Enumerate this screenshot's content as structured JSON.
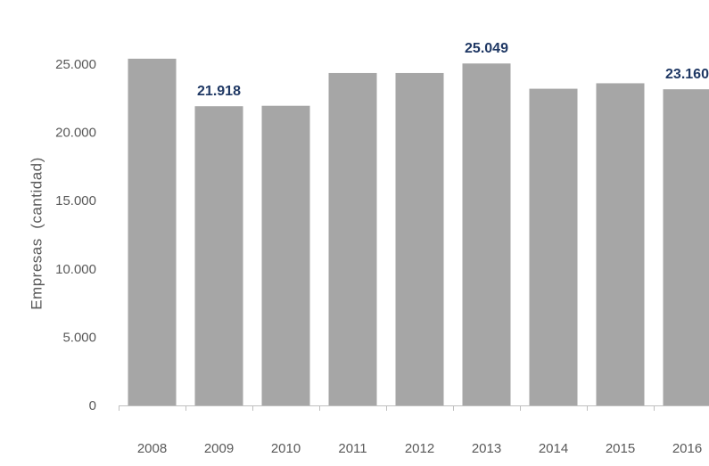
{
  "chart_data": {
    "type": "bar",
    "categories": [
      "2008",
      "2009",
      "2010",
      "2011",
      "2012",
      "2013",
      "2014",
      "2015",
      "2016"
    ],
    "values": [
      25400,
      21918,
      21950,
      24350,
      24350,
      25049,
      23200,
      23600,
      23160
    ],
    "data_labels": [
      {
        "category": "2009",
        "text": "21.918"
      },
      {
        "category": "2013",
        "text": "25.049"
      },
      {
        "category": "2016",
        "text": "23.160"
      }
    ],
    "yticks": [
      0,
      5000,
      10000,
      15000,
      20000,
      25000
    ],
    "ytick_labels": [
      "0",
      "5.000",
      "10.000",
      "15.000",
      "20.000",
      "25.000"
    ],
    "ylim": [
      0,
      25000
    ],
    "ylabel": "Empresas  (cantidad)",
    "xlabel": "",
    "title": "",
    "grid": false,
    "colors": {
      "bar": "#a6a6a6",
      "data_label": "#1f3864",
      "tick_text": "#595959",
      "axis_line": "#bfbfbf"
    }
  }
}
